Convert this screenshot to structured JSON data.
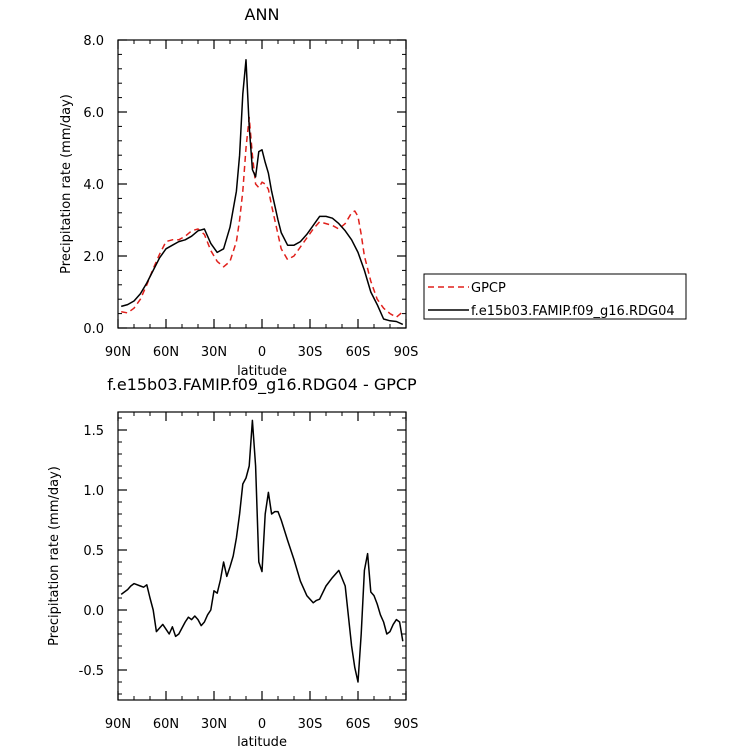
{
  "chart_data": [
    {
      "type": "line",
      "title": "ANN",
      "xlabel": "latitude",
      "ylabel": "Precipitation rate (mm/day)",
      "xlim": [
        90,
        -90
      ],
      "ylim": [
        0,
        8
      ],
      "x_ticks": [
        90,
        60,
        30,
        0,
        -30,
        -60,
        -90
      ],
      "x_tick_labels": [
        "90N",
        "60N",
        "30N",
        "0",
        "30S",
        "60S",
        "90S"
      ],
      "y_ticks": [
        0,
        2,
        4,
        6,
        8
      ],
      "y_tick_labels": [
        "0.0",
        "2.0",
        "4.0",
        "6.0",
        "8.0"
      ],
      "grid": false,
      "legend_position": "right",
      "series": [
        {
          "name": "GPCP",
          "color": "#e0201b",
          "dash": "dashed",
          "x": [
            88,
            84,
            80,
            76,
            72,
            68,
            64,
            60,
            56,
            52,
            48,
            44,
            40,
            36,
            32,
            28,
            24,
            20,
            16,
            14,
            12,
            10,
            8,
            6,
            4,
            2,
            0,
            -2,
            -4,
            -6,
            -8,
            -10,
            -12,
            -16,
            -20,
            -24,
            -28,
            -32,
            -36,
            -40,
            -44,
            -48,
            -52,
            -56,
            -58,
            -60,
            -62,
            -64,
            -68,
            -72,
            -76,
            -80,
            -84,
            -88
          ],
          "values": [
            0.45,
            0.42,
            0.55,
            0.8,
            1.2,
            1.65,
            2.05,
            2.4,
            2.45,
            2.45,
            2.55,
            2.7,
            2.75,
            2.6,
            2.15,
            1.85,
            1.7,
            1.85,
            2.4,
            3.0,
            3.8,
            5.0,
            5.85,
            4.8,
            4.0,
            3.9,
            4.05,
            4.0,
            3.85,
            3.4,
            3.0,
            2.6,
            2.2,
            1.9,
            2.0,
            2.25,
            2.5,
            2.75,
            2.95,
            2.9,
            2.85,
            2.75,
            2.9,
            3.2,
            3.25,
            3.1,
            2.6,
            2.0,
            1.3,
            0.8,
            0.55,
            0.4,
            0.3,
            0.45
          ]
        },
        {
          "name": "f.e15b03.FAMIP.f09_g16.RDG04",
          "color": "#000000",
          "dash": "solid",
          "x": [
            88,
            84,
            80,
            76,
            72,
            68,
            64,
            60,
            56,
            52,
            48,
            44,
            40,
            36,
            32,
            28,
            24,
            20,
            16,
            14,
            12,
            10,
            8,
            6,
            4,
            2,
            0,
            -2,
            -4,
            -6,
            -8,
            -10,
            -12,
            -16,
            -20,
            -24,
            -28,
            -32,
            -36,
            -40,
            -44,
            -48,
            -52,
            -56,
            -60,
            -64,
            -68,
            -72,
            -76,
            -80,
            -84,
            -88
          ],
          "values": [
            0.6,
            0.65,
            0.75,
            0.95,
            1.25,
            1.6,
            1.95,
            2.2,
            2.3,
            2.4,
            2.45,
            2.55,
            2.7,
            2.75,
            2.35,
            2.1,
            2.2,
            2.8,
            3.8,
            4.8,
            6.5,
            7.45,
            5.6,
            4.4,
            4.2,
            4.9,
            4.95,
            4.6,
            4.3,
            3.8,
            3.4,
            3.0,
            2.65,
            2.3,
            2.3,
            2.4,
            2.6,
            2.85,
            3.1,
            3.1,
            3.05,
            2.9,
            2.7,
            2.45,
            2.1,
            1.6,
            1.0,
            0.65,
            0.25,
            0.2,
            0.18,
            0.1
          ]
        }
      ]
    },
    {
      "type": "line",
      "title": "f.e15b03.FAMIP.f09_g16.RDG04 - GPCP",
      "xlabel": "latitude",
      "ylabel": "Precipitation rate (mm/day)",
      "xlim": [
        90,
        -90
      ],
      "ylim": [
        -0.75,
        1.65
      ],
      "x_ticks": [
        90,
        60,
        30,
        0,
        -30,
        -60,
        -90
      ],
      "x_tick_labels": [
        "90N",
        "60N",
        "30N",
        "0",
        "30S",
        "60S",
        "90S"
      ],
      "y_ticks": [
        -0.5,
        0,
        0.5,
        1.0,
        1.5
      ],
      "y_tick_labels": [
        "-0.5",
        "0.0",
        "0.5",
        "1.0",
        "1.5"
      ],
      "grid": false,
      "series": [
        {
          "color": "#000000",
          "dash": "solid",
          "x": [
            88,
            84,
            82,
            80,
            76,
            74,
            72,
            70,
            68,
            66,
            64,
            62,
            60,
            58,
            56,
            54,
            52,
            50,
            48,
            46,
            44,
            42,
            40,
            38,
            36,
            34,
            32,
            30,
            28,
            26,
            24,
            22,
            20,
            18,
            16,
            14,
            12,
            10,
            8,
            6,
            4,
            2,
            0,
            -2,
            -4,
            -6,
            -8,
            -10,
            -12,
            -16,
            -20,
            -24,
            -28,
            -32,
            -34,
            -36,
            -40,
            -44,
            -48,
            -52,
            -56,
            -58,
            -60,
            -62,
            -64,
            -66,
            -68,
            -70,
            -72,
            -74,
            -76,
            -78,
            -80,
            -82,
            -84,
            -86,
            -88
          ],
          "values": [
            0.13,
            0.17,
            0.2,
            0.22,
            0.2,
            0.19,
            0.21,
            0.1,
            0.0,
            -0.18,
            -0.15,
            -0.12,
            -0.16,
            -0.2,
            -0.14,
            -0.22,
            -0.2,
            -0.15,
            -0.1,
            -0.06,
            -0.08,
            -0.05,
            -0.08,
            -0.13,
            -0.1,
            -0.04,
            0.0,
            0.16,
            0.14,
            0.25,
            0.4,
            0.28,
            0.36,
            0.45,
            0.6,
            0.8,
            1.05,
            1.1,
            1.2,
            1.58,
            1.2,
            0.4,
            0.32,
            0.8,
            0.98,
            0.8,
            0.82,
            0.82,
            0.75,
            0.58,
            0.42,
            0.24,
            0.12,
            0.06,
            0.08,
            0.09,
            0.2,
            0.27,
            0.33,
            0.2,
            -0.3,
            -0.48,
            -0.6,
            -0.2,
            0.33,
            0.47,
            0.15,
            0.12,
            0.05,
            -0.04,
            -0.1,
            -0.2,
            -0.18,
            -0.12,
            -0.08,
            -0.1,
            -0.26
          ]
        }
      ]
    }
  ]
}
